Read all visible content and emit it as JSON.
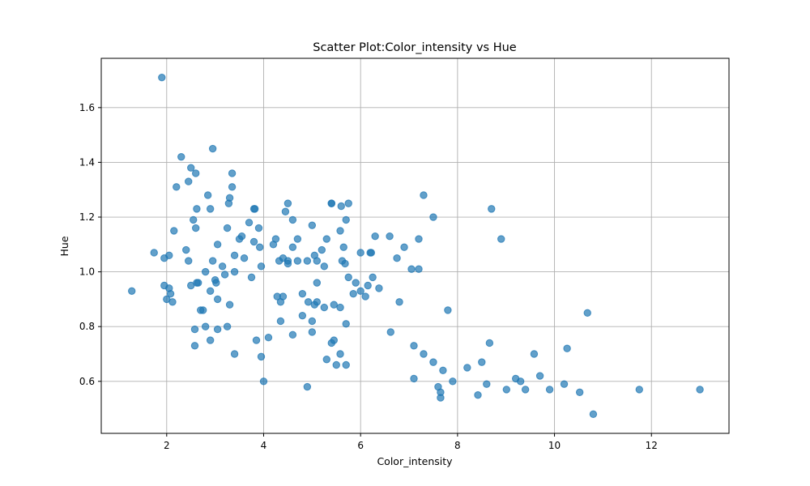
{
  "chart_data": {
    "type": "scatter",
    "title": "Scatter Plot:Color_intensity vs Hue",
    "xlabel": "Color_intensity",
    "ylabel": "Hue",
    "xlim": [
      0.65,
      13.6
    ],
    "ylim": [
      0.41,
      1.78
    ],
    "xticks": [
      2,
      4,
      6,
      8,
      10,
      12
    ],
    "yticks": [
      0.6,
      0.8,
      1.0,
      1.2,
      1.4,
      1.6
    ],
    "xtick_labels": [
      "2",
      "4",
      "6",
      "8",
      "10",
      "12"
    ],
    "ytick_labels": [
      "0.6",
      "0.8",
      "1.0",
      "1.2",
      "1.4",
      "1.6"
    ],
    "grid": true,
    "color": "#1f77b4",
    "points": [
      [
        1.28,
        0.93
      ],
      [
        1.74,
        1.07
      ],
      [
        1.9,
        1.71
      ],
      [
        1.95,
        1.05
      ],
      [
        1.95,
        0.95
      ],
      [
        2.0,
        0.9
      ],
      [
        2.05,
        0.94
      ],
      [
        2.05,
        1.06
      ],
      [
        2.08,
        0.92
      ],
      [
        2.12,
        0.89
      ],
      [
        2.15,
        1.15
      ],
      [
        2.2,
        1.31
      ],
      [
        2.3,
        1.42
      ],
      [
        2.4,
        1.08
      ],
      [
        2.45,
        1.33
      ],
      [
        2.45,
        1.04
      ],
      [
        2.5,
        1.38
      ],
      [
        2.5,
        0.95
      ],
      [
        2.55,
        1.19
      ],
      [
        2.58,
        0.79
      ],
      [
        2.58,
        0.73
      ],
      [
        2.6,
        1.36
      ],
      [
        2.6,
        1.16
      ],
      [
        2.62,
        1.23
      ],
      [
        2.62,
        0.96
      ],
      [
        2.65,
        0.96
      ],
      [
        2.7,
        0.86
      ],
      [
        2.75,
        0.86
      ],
      [
        2.8,
        1.0
      ],
      [
        2.8,
        0.8
      ],
      [
        2.85,
        1.28
      ],
      [
        2.9,
        1.23
      ],
      [
        2.9,
        0.93
      ],
      [
        2.9,
        0.75
      ],
      [
        2.95,
        1.45
      ],
      [
        2.95,
        1.04
      ],
      [
        3.0,
        0.97
      ],
      [
        3.02,
        0.96
      ],
      [
        3.05,
        1.1
      ],
      [
        3.05,
        0.79
      ],
      [
        3.05,
        0.9
      ],
      [
        3.15,
        1.02
      ],
      [
        3.2,
        0.99
      ],
      [
        3.25,
        1.16
      ],
      [
        3.25,
        0.8
      ],
      [
        3.28,
        1.25
      ],
      [
        3.3,
        1.27
      ],
      [
        3.3,
        0.88
      ],
      [
        3.35,
        1.31
      ],
      [
        3.35,
        1.36
      ],
      [
        3.4,
        1.06
      ],
      [
        3.4,
        1.0
      ],
      [
        3.4,
        0.7
      ],
      [
        3.5,
        1.12
      ],
      [
        3.55,
        1.13
      ],
      [
        3.6,
        1.05
      ],
      [
        3.7,
        1.18
      ],
      [
        3.75,
        0.98
      ],
      [
        3.8,
        1.23
      ],
      [
        3.8,
        1.11
      ],
      [
        3.82,
        1.23
      ],
      [
        3.85,
        0.75
      ],
      [
        3.9,
        1.16
      ],
      [
        3.92,
        1.09
      ],
      [
        3.95,
        1.02
      ],
      [
        3.95,
        0.69
      ],
      [
        4.0,
        0.6
      ],
      [
        4.1,
        0.76
      ],
      [
        4.2,
        1.1
      ],
      [
        4.25,
        1.12
      ],
      [
        4.28,
        0.91
      ],
      [
        4.32,
        1.04
      ],
      [
        4.35,
        0.82
      ],
      [
        4.35,
        0.89
      ],
      [
        4.4,
        1.05
      ],
      [
        4.4,
        0.91
      ],
      [
        4.45,
        1.22
      ],
      [
        4.5,
        1.25
      ],
      [
        4.5,
        1.04
      ],
      [
        4.5,
        1.03
      ],
      [
        4.6,
        1.19
      ],
      [
        4.6,
        1.09
      ],
      [
        4.6,
        0.77
      ],
      [
        4.7,
        1.12
      ],
      [
        4.7,
        1.04
      ],
      [
        4.8,
        0.92
      ],
      [
        4.8,
        0.84
      ],
      [
        4.9,
        1.04
      ],
      [
        4.9,
        0.58
      ],
      [
        4.92,
        0.89
      ],
      [
        5.0,
        1.17
      ],
      [
        5.0,
        0.82
      ],
      [
        5.0,
        0.78
      ],
      [
        5.05,
        1.06
      ],
      [
        5.05,
        0.88
      ],
      [
        5.1,
        1.04
      ],
      [
        5.1,
        0.96
      ],
      [
        5.1,
        0.89
      ],
      [
        5.2,
        1.08
      ],
      [
        5.25,
        1.02
      ],
      [
        5.25,
        0.87
      ],
      [
        5.3,
        1.12
      ],
      [
        5.3,
        0.68
      ],
      [
        5.4,
        1.25
      ],
      [
        5.4,
        1.25
      ],
      [
        5.4,
        0.74
      ],
      [
        5.45,
        0.88
      ],
      [
        5.45,
        0.75
      ],
      [
        5.5,
        0.66
      ],
      [
        5.58,
        1.15
      ],
      [
        5.58,
        0.87
      ],
      [
        5.58,
        0.7
      ],
      [
        5.6,
        1.24
      ],
      [
        5.62,
        1.04
      ],
      [
        5.65,
        1.09
      ],
      [
        5.68,
        1.03
      ],
      [
        5.7,
        1.19
      ],
      [
        5.7,
        0.81
      ],
      [
        5.7,
        0.66
      ],
      [
        5.75,
        1.25
      ],
      [
        5.75,
        0.98
      ],
      [
        5.85,
        0.92
      ],
      [
        5.9,
        0.96
      ],
      [
        6.0,
        1.07
      ],
      [
        6.0,
        0.93
      ],
      [
        6.1,
        0.91
      ],
      [
        6.15,
        0.95
      ],
      [
        6.2,
        1.07
      ],
      [
        6.22,
        1.07
      ],
      [
        6.25,
        0.98
      ],
      [
        6.3,
        1.13
      ],
      [
        6.38,
        0.94
      ],
      [
        6.6,
        1.13
      ],
      [
        6.62,
        0.78
      ],
      [
        6.75,
        1.05
      ],
      [
        6.8,
        0.89
      ],
      [
        6.9,
        1.09
      ],
      [
        7.05,
        1.01
      ],
      [
        7.1,
        0.61
      ],
      [
        7.1,
        0.73
      ],
      [
        7.2,
        1.12
      ],
      [
        7.2,
        1.01
      ],
      [
        7.3,
        0.7
      ],
      [
        7.3,
        1.28
      ],
      [
        7.5,
        1.2
      ],
      [
        7.5,
        0.67
      ],
      [
        7.6,
        0.58
      ],
      [
        7.65,
        0.56
      ],
      [
        7.65,
        0.54
      ],
      [
        7.7,
        0.64
      ],
      [
        7.8,
        0.86
      ],
      [
        7.9,
        0.6
      ],
      [
        8.2,
        0.65
      ],
      [
        8.42,
        0.55
      ],
      [
        8.5,
        0.67
      ],
      [
        8.6,
        0.59
      ],
      [
        8.66,
        0.74
      ],
      [
        8.7,
        1.23
      ],
      [
        8.9,
        1.12
      ],
      [
        9.01,
        0.57
      ],
      [
        9.2,
        0.61
      ],
      [
        9.3,
        0.6
      ],
      [
        9.4,
        0.57
      ],
      [
        9.58,
        0.7
      ],
      [
        9.7,
        0.62
      ],
      [
        9.9,
        0.57
      ],
      [
        10.2,
        0.59
      ],
      [
        10.26,
        0.72
      ],
      [
        10.52,
        0.56
      ],
      [
        10.68,
        0.85
      ],
      [
        10.8,
        0.48
      ],
      [
        11.75,
        0.57
      ],
      [
        13.0,
        0.57
      ]
    ]
  }
}
